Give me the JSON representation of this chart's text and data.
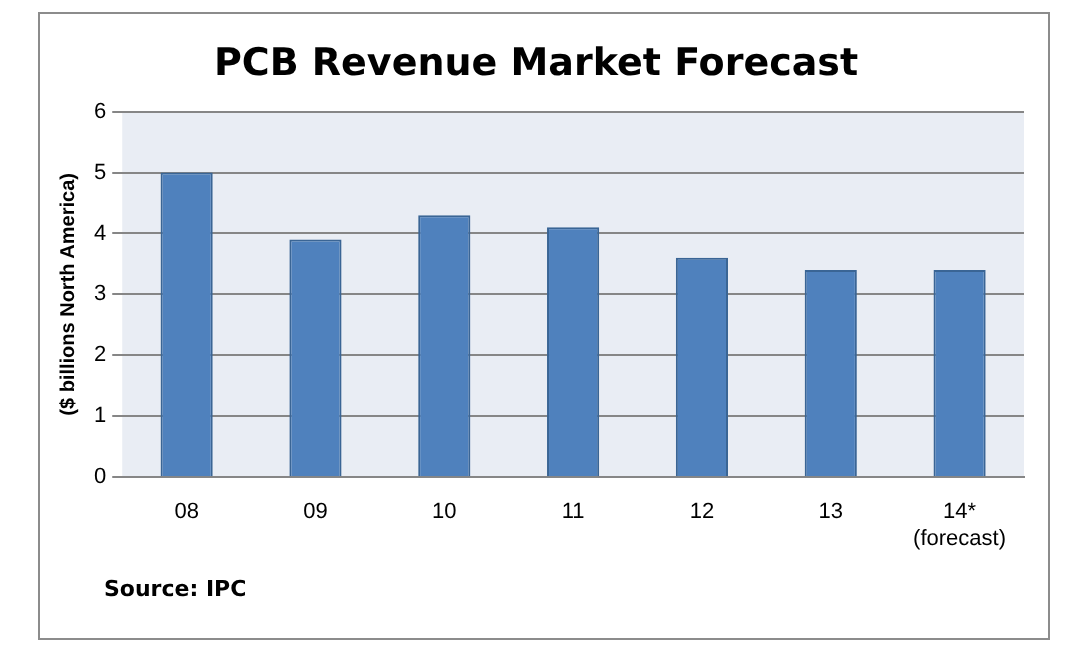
{
  "chart_data": {
    "type": "bar",
    "title": "PCB Revenue Market Forecast",
    "ylabel": "($ billions North America)",
    "categories": [
      "08",
      "09",
      "10",
      "11",
      "12",
      "13",
      "14*\n(forecast)"
    ],
    "values": [
      5.0,
      3.9,
      4.3,
      4.1,
      3.6,
      3.4,
      3.4
    ],
    "color": "#4f81bd",
    "ylim": [
      0,
      6
    ],
    "yticks": [
      0,
      1,
      2,
      3,
      4,
      5,
      6
    ],
    "grid": "y",
    "legend": false,
    "annotations": [
      "Source: IPC"
    ]
  }
}
